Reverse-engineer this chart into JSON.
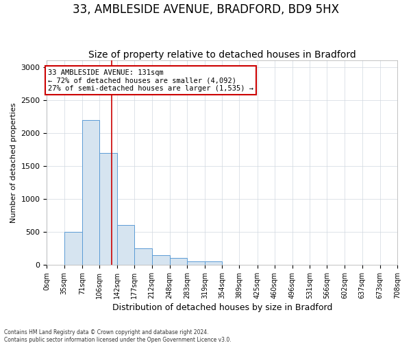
{
  "title1": "33, AMBLESIDE AVENUE, BRADFORD, BD9 5HX",
  "title2": "Size of property relative to detached houses in Bradford",
  "xlabel": "Distribution of detached houses by size in Bradford",
  "ylabel": "Number of detached properties",
  "footnote": "Contains HM Land Registry data © Crown copyright and database right 2024.\nContains public sector information licensed under the Open Government Licence v3.0.",
  "bin_edges": [
    0,
    35,
    71,
    106,
    142,
    177,
    212,
    248,
    283,
    319,
    354,
    389,
    425,
    460,
    496,
    531,
    566,
    602,
    637,
    673,
    708
  ],
  "bar_heights": [
    0,
    500,
    2200,
    1700,
    600,
    250,
    150,
    100,
    50,
    50,
    0,
    0,
    0,
    0,
    0,
    0,
    0,
    0,
    0,
    0
  ],
  "bar_color": "#d6e4f0",
  "bar_edge_color": "#5b9bd5",
  "property_size": 131,
  "annotation_text": "33 AMBLESIDE AVENUE: 131sqm\n← 72% of detached houses are smaller (4,092)\n27% of semi-detached houses are larger (1,535) →",
  "vline_color": "#cc0000",
  "annotation_box_color": "#cc0000",
  "ylim": [
    0,
    3100
  ],
  "yticks": [
    0,
    500,
    1000,
    1500,
    2000,
    2500,
    3000
  ],
  "bg_color": "#ffffff",
  "plot_bg_color": "#ffffff",
  "grid_color": "#d0d8e0",
  "title1_fontsize": 12,
  "title2_fontsize": 10,
  "ylabel_fontsize": 8,
  "xlabel_fontsize": 9,
  "tick_fontsize": 7,
  "annotation_fontsize": 7.5,
  "footnote_fontsize": 5.5
}
